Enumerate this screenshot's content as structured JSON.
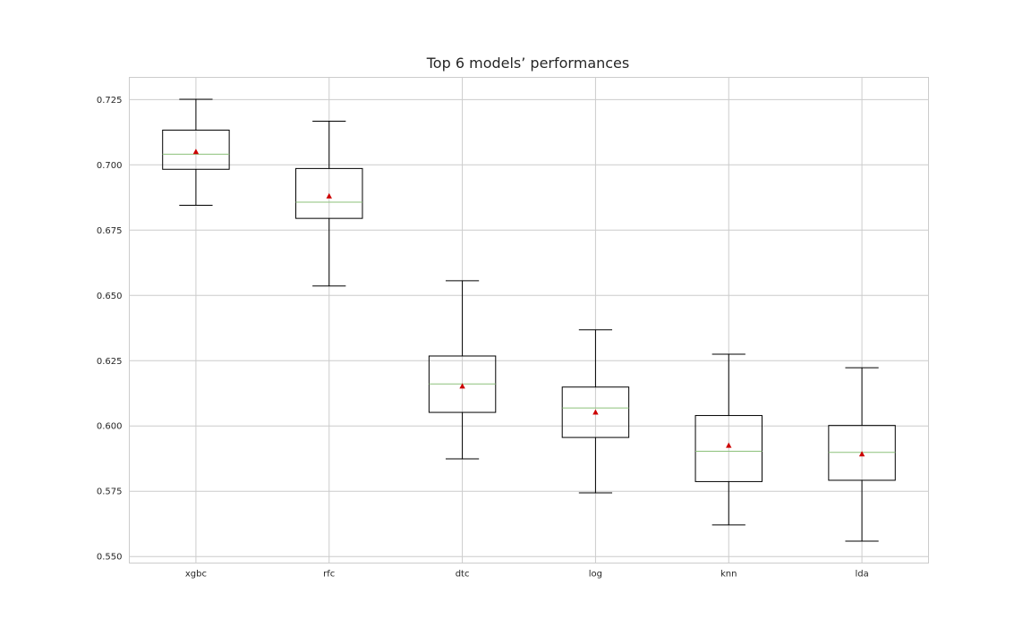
{
  "chart_data": {
    "type": "box",
    "title": "Top 6 models’ performances",
    "xlabel": "",
    "ylabel": "",
    "ylim": [
      0.5475,
      0.7335
    ],
    "yticks": [
      0.55,
      0.575,
      0.6,
      0.625,
      0.65,
      0.675,
      0.7,
      0.725
    ],
    "ytick_labels": [
      "0.550",
      "0.575",
      "0.600",
      "0.625",
      "0.650",
      "0.675",
      "0.700",
      "0.725"
    ],
    "grid": true,
    "show_means": true,
    "categories": [
      "xgbc",
      "rfc",
      "dtc",
      "log",
      "knn",
      "lda"
    ],
    "boxes": [
      {
        "label": "xgbc",
        "whislo": 0.6845,
        "q1": 0.6983,
        "median": 0.7041,
        "q3": 0.7133,
        "whishi": 0.7251,
        "mean": 0.705
      },
      {
        "label": "rfc",
        "whislo": 0.6536,
        "q1": 0.6795,
        "median": 0.6857,
        "q3": 0.6986,
        "whishi": 0.7167,
        "mean": 0.688
      },
      {
        "label": "dtc",
        "whislo": 0.5874,
        "q1": 0.6052,
        "median": 0.6161,
        "q3": 0.6268,
        "whishi": 0.6556,
        "mean": 0.6152
      },
      {
        "label": "log",
        "whislo": 0.5744,
        "q1": 0.5956,
        "median": 0.6069,
        "q3": 0.6149,
        "whishi": 0.6368,
        "mean": 0.6052
      },
      {
        "label": "knn",
        "whislo": 0.5621,
        "q1": 0.5787,
        "median": 0.5903,
        "q3": 0.604,
        "whishi": 0.6275,
        "mean": 0.5925
      },
      {
        "label": "lda",
        "whislo": 0.5559,
        "q1": 0.5792,
        "median": 0.5899,
        "q3": 0.6002,
        "whishi": 0.6223,
        "mean": 0.5892
      }
    ],
    "colors": {
      "box": "#000000",
      "median": "#8cc17a",
      "mean_marker": "#cc0000",
      "grid": "#cccccc",
      "frame": "#cccccc",
      "text": "#262626"
    }
  }
}
